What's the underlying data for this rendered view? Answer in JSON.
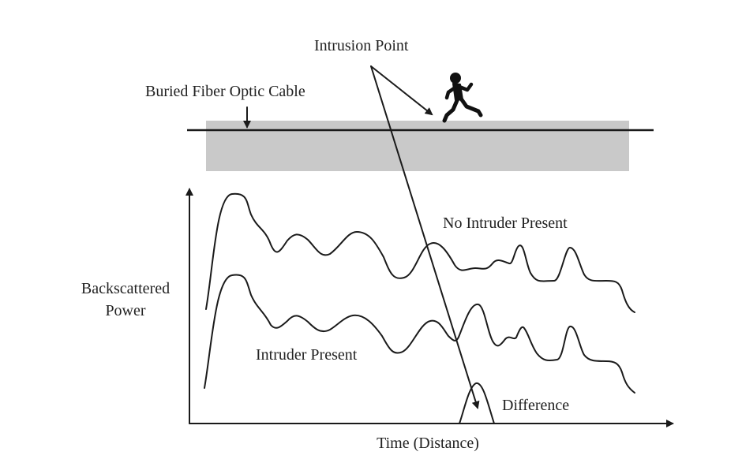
{
  "labels": {
    "intrusion_point": "Intrusion Point",
    "buried_cable": "Buried Fiber Optic Cable",
    "no_intruder": "No Intruder Present",
    "intruder": "Intruder Present",
    "difference": "Difference",
    "y_axis_line1": "Backscattered",
    "y_axis_line2": "Power",
    "x_axis": "Time (Distance)"
  },
  "colors": {
    "ground": "#c9c9c9",
    "ink": "#1a1a1a"
  },
  "icons": {
    "runner": "running-person-icon"
  }
}
